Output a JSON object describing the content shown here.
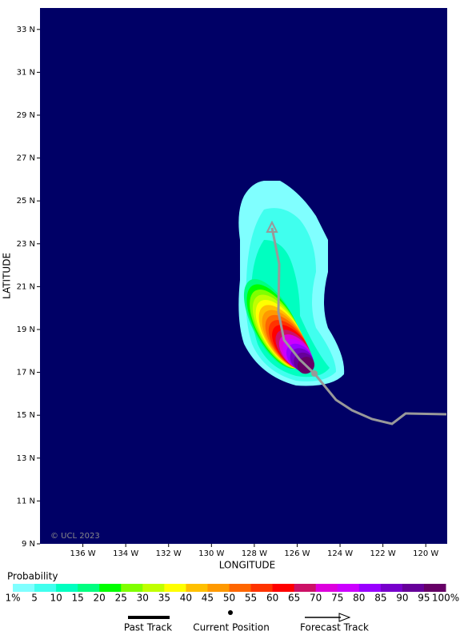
{
  "map": {
    "xlim": [
      -138,
      -119
    ],
    "ylim": [
      9,
      34
    ],
    "xticks": [
      {
        "value": -136,
        "label": "136 W"
      },
      {
        "value": -134,
        "label": "134 W"
      },
      {
        "value": -132,
        "label": "132 W"
      },
      {
        "value": -130,
        "label": "130 W"
      },
      {
        "value": -128,
        "label": "128 W"
      },
      {
        "value": -126,
        "label": "126 W"
      },
      {
        "value": -124,
        "label": "124 W"
      },
      {
        "value": -122,
        "label": "122 W"
      },
      {
        "value": -120,
        "label": "120 W"
      }
    ],
    "yticks": [
      {
        "value": 9,
        "label": "9 N"
      },
      {
        "value": 11,
        "label": "11 N"
      },
      {
        "value": 13,
        "label": "13 N"
      },
      {
        "value": 15,
        "label": "15 N"
      },
      {
        "value": 17,
        "label": "17 N"
      },
      {
        "value": 19,
        "label": "19 N"
      },
      {
        "value": 21,
        "label": "21 N"
      },
      {
        "value": 23,
        "label": "23 N"
      },
      {
        "value": 25,
        "label": "25 N"
      },
      {
        "value": 27,
        "label": "27 N"
      },
      {
        "value": 29,
        "label": "29 N"
      },
      {
        "value": 31,
        "label": "31 N"
      },
      {
        "value": 33,
        "label": "33 N"
      }
    ],
    "xlabel": "LONGITUDE",
    "ylabel": "LATITUDE",
    "background": "#000066",
    "copyright": "© UCL 2023"
  },
  "legend": {
    "title": "Probability",
    "labels": [
      "1%",
      "5",
      "10",
      "15",
      "20",
      "25",
      "30",
      "35",
      "40",
      "45",
      "50",
      "55",
      "60",
      "65",
      "70",
      "75",
      "80",
      "85",
      "90",
      "95",
      "100%"
    ],
    "colors": [
      "#80ffff",
      "#40ffee",
      "#00ffc0",
      "#00ff80",
      "#00ff00",
      "#80ff00",
      "#c0ff00",
      "#ffff00",
      "#ffc000",
      "#ff9900",
      "#ff6600",
      "#ff3300",
      "#ff0000",
      "#cc1166",
      "#dd00dd",
      "#cc00ff",
      "#9900ff",
      "#7700cc",
      "#660099",
      "#660066"
    ],
    "past_track": "Past Track",
    "current_position": "Current Position",
    "forecast_track": "Forecast Track"
  }
}
